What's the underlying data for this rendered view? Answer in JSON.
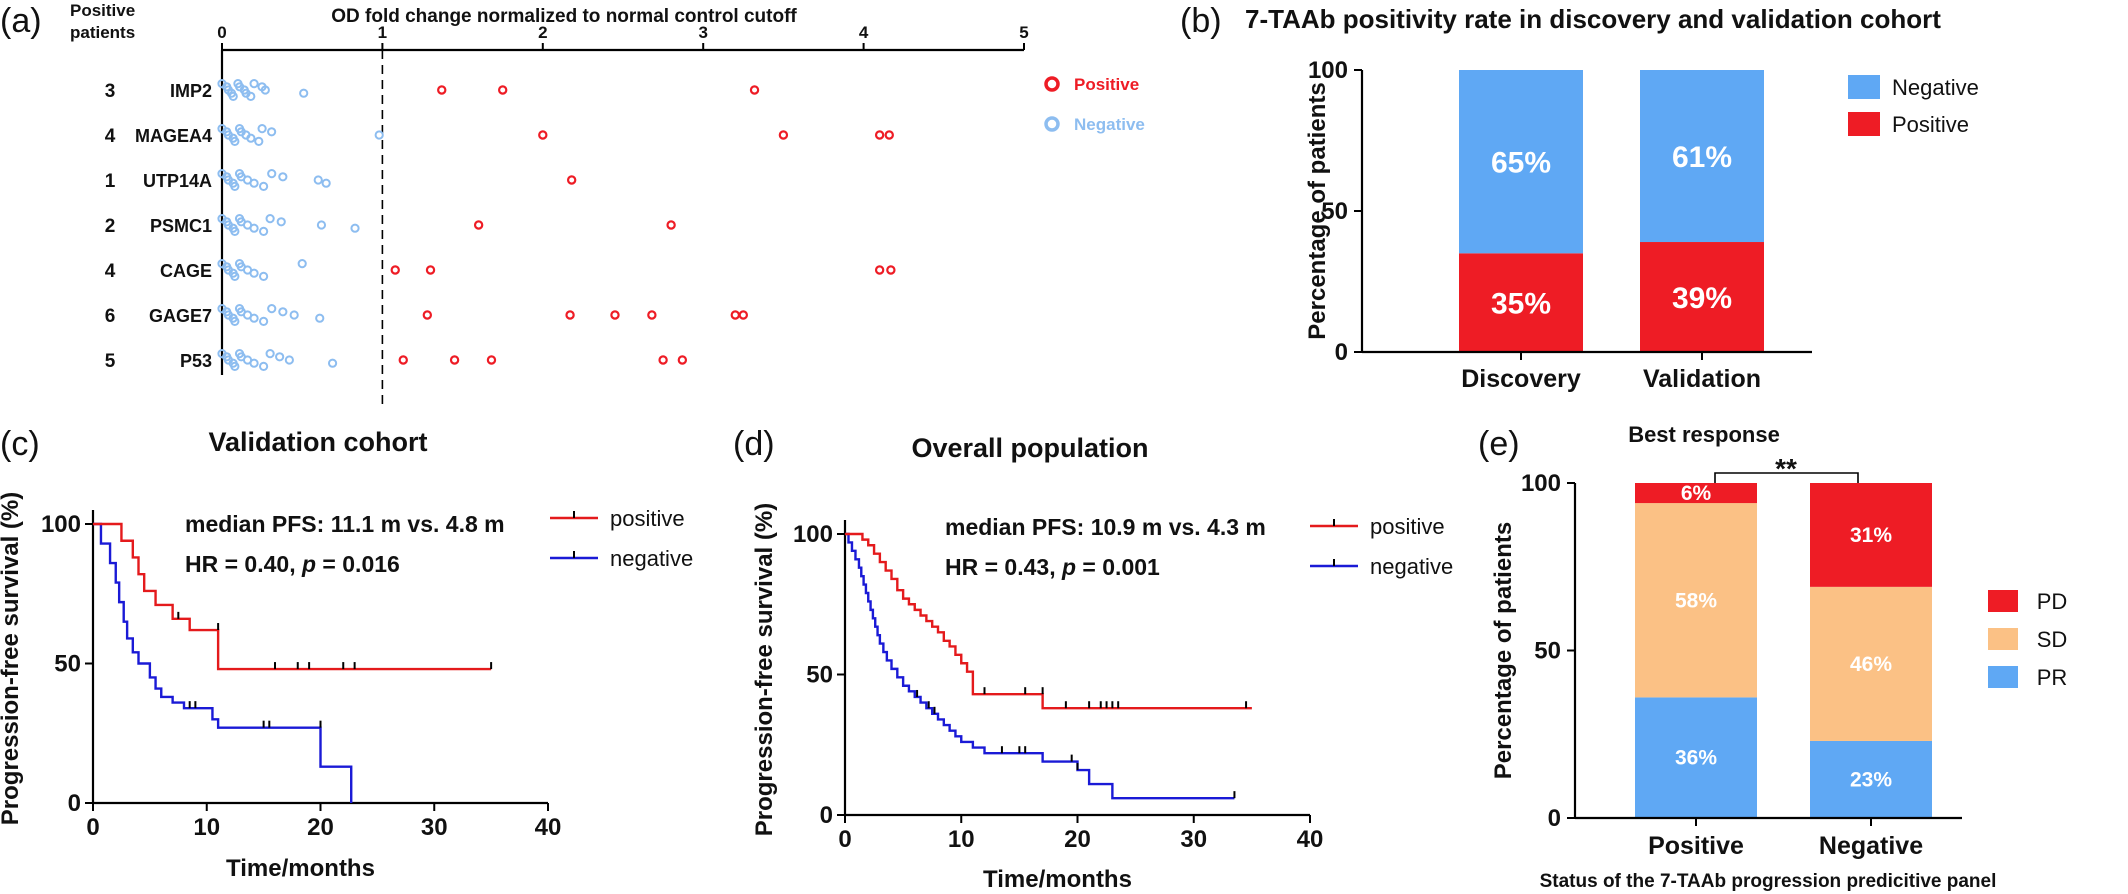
{
  "panels": {
    "a": {
      "label": "(a)"
    },
    "b": {
      "label": "(b)"
    },
    "c": {
      "label": "(c)"
    },
    "d": {
      "label": "(d)"
    },
    "e": {
      "label": "(e)"
    }
  },
  "colors": {
    "positive_red": "#ee1c25",
    "negative_blue": "#5fa8f4",
    "dot_negative": "#8dbdf0",
    "km_red": "#e41a1c",
    "km_blue": "#1a1ad6",
    "sd_orange": "#fbc185"
  },
  "chart_data": [
    {
      "id": "a",
      "type": "scatter",
      "title": "OD fold change normalized to normal control cutoff",
      "row_header": "Positive\npatients",
      "xlim": [
        0,
        5
      ],
      "xticks": [
        0,
        1,
        2,
        3,
        4,
        5
      ],
      "cutoff": 1,
      "legend": [
        {
          "name": "Positive",
          "color": "#ee1c25"
        },
        {
          "name": "Negative",
          "color": "#8dbdf0"
        }
      ],
      "rows": [
        {
          "antigen": "IMP2",
          "positive_patients": "3",
          "positive": [
            1.37,
            1.75,
            3.32
          ],
          "negative": [
            0.0,
            0.02,
            0.04,
            0.05,
            0.07,
            0.09,
            0.11,
            0.13,
            0.15,
            0.17,
            0.2,
            0.24,
            0.27,
            0.5
          ]
        },
        {
          "antigen": "MAGEA4",
          "positive_patients": "4",
          "positive": [
            2.0,
            3.5,
            4.1,
            4.16
          ],
          "negative": [
            0.0,
            0.02,
            0.04,
            0.06,
            0.08,
            0.1,
            0.12,
            0.14,
            0.18,
            0.22,
            0.25,
            0.3,
            0.98
          ]
        },
        {
          "antigen": "UTP14A",
          "positive_patients": "1",
          "positive": [
            2.18
          ],
          "negative": [
            0.0,
            0.02,
            0.04,
            0.06,
            0.08,
            0.1,
            0.12,
            0.15,
            0.2,
            0.25,
            0.31,
            0.37,
            0.6,
            0.64
          ]
        },
        {
          "antigen": "PSMC1",
          "positive_patients": "2",
          "positive": [
            1.6,
            2.8
          ],
          "negative": [
            0.0,
            0.02,
            0.04,
            0.06,
            0.08,
            0.1,
            0.12,
            0.15,
            0.2,
            0.25,
            0.3,
            0.36,
            0.62,
            0.82
          ]
        },
        {
          "antigen": "CAGE",
          "positive_patients": "4",
          "positive": [
            1.08,
            1.3,
            4.1,
            4.17
          ],
          "negative": [
            0.0,
            0.02,
            0.04,
            0.06,
            0.08,
            0.1,
            0.12,
            0.15,
            0.2,
            0.25,
            0.5
          ]
        },
        {
          "antigen": "GAGE7",
          "positive_patients": "6",
          "positive": [
            1.28,
            2.17,
            2.45,
            2.68,
            3.2,
            3.25
          ],
          "negative": [
            0.0,
            0.02,
            0.04,
            0.06,
            0.08,
            0.1,
            0.12,
            0.15,
            0.2,
            0.25,
            0.31,
            0.37,
            0.45,
            0.6
          ]
        },
        {
          "antigen": "P53",
          "positive_patients": "5",
          "positive": [
            1.13,
            1.45,
            1.68,
            2.75,
            2.87
          ],
          "negative": [
            0.0,
            0.02,
            0.04,
            0.06,
            0.08,
            0.1,
            0.12,
            0.15,
            0.2,
            0.25,
            0.3,
            0.35,
            0.42,
            0.68
          ]
        }
      ]
    },
    {
      "id": "b",
      "type": "bar",
      "stacked": true,
      "title": "7-TAAb positivity rate in discovery and validation cohort",
      "ylabel": "Percentage of patients",
      "ylim": [
        0,
        100
      ],
      "yticks": [
        0,
        50,
        100
      ],
      "categories": [
        "Discovery",
        "Validation"
      ],
      "legend_position": "right",
      "series": [
        {
          "name": "Positive",
          "values": [
            35,
            39
          ],
          "labels": [
            "35%",
            "39%"
          ],
          "color": "#ee1c25"
        },
        {
          "name": "Negative",
          "values": [
            65,
            61
          ],
          "labels": [
            "65%",
            "61%"
          ],
          "color": "#5fa8f4"
        }
      ]
    },
    {
      "id": "c",
      "type": "line",
      "subtype": "kaplan-meier",
      "title": "Validation cohort",
      "xlabel": "Time/months",
      "ylabel": "Progression-free survival (%)",
      "xlim": [
        0,
        40
      ],
      "ylim": [
        0,
        100
      ],
      "xticks": [
        0,
        10,
        20,
        30,
        40
      ],
      "yticks": [
        0,
        50,
        100
      ],
      "annotation_line1": "median PFS: 11.1 m vs. 4.8 m",
      "annotation_line2_prefix": "HR = 0.40, ",
      "annotation_line2_p": "p",
      "annotation_line2_suffix": " = 0.016",
      "series": [
        {
          "name": "positive",
          "color": "#e41a1c",
          "steps": [
            [
              0,
              100
            ],
            [
              2.5,
              94
            ],
            [
              3.5,
              88
            ],
            [
              4,
              82
            ],
            [
              4.5,
              76
            ],
            [
              5.5,
              71
            ],
            [
              7,
              66
            ],
            [
              8.5,
              62
            ],
            [
              11,
              48
            ],
            [
              35,
              48
            ]
          ],
          "censor": [
            [
              7.5,
              66
            ],
            [
              11,
              62
            ],
            [
              16,
              48
            ],
            [
              18,
              48
            ],
            [
              19,
              48
            ],
            [
              22,
              48
            ],
            [
              23,
              48
            ],
            [
              35,
              48
            ]
          ]
        },
        {
          "name": "negative",
          "color": "#1a1ad6",
          "steps": [
            [
              0,
              100
            ],
            [
              0.7,
              93
            ],
            [
              1.5,
              86
            ],
            [
              2,
              79
            ],
            [
              2.3,
              72
            ],
            [
              2.7,
              65
            ],
            [
              3,
              59
            ],
            [
              3.5,
              54
            ],
            [
              4,
              50
            ],
            [
              5,
              45
            ],
            [
              5.5,
              41
            ],
            [
              6,
              38
            ],
            [
              7,
              36
            ],
            [
              8,
              34
            ],
            [
              10.5,
              30
            ],
            [
              11,
              27
            ],
            [
              20,
              13
            ],
            [
              22.7,
              0
            ]
          ],
          "censor": [
            [
              8.5,
              34
            ],
            [
              9,
              34
            ],
            [
              15,
              27
            ],
            [
              15.5,
              27
            ],
            [
              20,
              27
            ]
          ]
        }
      ]
    },
    {
      "id": "d",
      "type": "line",
      "subtype": "kaplan-meier",
      "title": "Overall population",
      "xlabel": "Time/months",
      "ylabel": "Progression-free survival (%)",
      "xlim": [
        0,
        40
      ],
      "ylim": [
        0,
        100
      ],
      "xticks": [
        0,
        10,
        20,
        30,
        40
      ],
      "yticks": [
        0,
        50,
        100
      ],
      "annotation_line1": "median PFS: 10.9 m vs. 4.3 m",
      "annotation_line2_prefix": "HR = 0.43, ",
      "annotation_line2_p": "p",
      "annotation_line2_suffix": " = 0.001",
      "series": [
        {
          "name": "positive",
          "color": "#e41a1c",
          "steps": [
            [
              0,
              100
            ],
            [
              1.5,
              98
            ],
            [
              2,
              96
            ],
            [
              2.5,
              93
            ],
            [
              3,
              90
            ],
            [
              3.5,
              87
            ],
            [
              4,
              84
            ],
            [
              4.5,
              80
            ],
            [
              5,
              77
            ],
            [
              5.5,
              75
            ],
            [
              6,
              73
            ],
            [
              6.5,
              71
            ],
            [
              7,
              69
            ],
            [
              7.5,
              67
            ],
            [
              8,
              65
            ],
            [
              8.5,
              62
            ],
            [
              9,
              60
            ],
            [
              9.5,
              57
            ],
            [
              10,
              54
            ],
            [
              10.5,
              51
            ],
            [
              11,
              43
            ],
            [
              17,
              38
            ],
            [
              35,
              38
            ]
          ],
          "censor": [
            [
              12,
              43
            ],
            [
              15.5,
              43
            ],
            [
              17,
              43
            ],
            [
              19,
              38
            ],
            [
              21,
              38
            ],
            [
              22,
              38
            ],
            [
              22.5,
              38
            ],
            [
              23,
              38
            ],
            [
              23.5,
              38
            ],
            [
              34.5,
              38
            ]
          ]
        },
        {
          "name": "negative",
          "color": "#1a1ad6",
          "steps": [
            [
              0,
              100
            ],
            [
              0.3,
              97
            ],
            [
              0.6,
              94
            ],
            [
              0.9,
              91
            ],
            [
              1.2,
              88
            ],
            [
              1.4,
              85
            ],
            [
              1.6,
              82
            ],
            [
              1.8,
              79
            ],
            [
              2,
              76
            ],
            [
              2.2,
              73
            ],
            [
              2.4,
              70
            ],
            [
              2.6,
              67
            ],
            [
              2.8,
              64
            ],
            [
              3,
              61
            ],
            [
              3.3,
              58
            ],
            [
              3.6,
              55
            ],
            [
              4,
              52
            ],
            [
              4.5,
              49
            ],
            [
              5,
              46
            ],
            [
              5.5,
              44
            ],
            [
              6,
              42
            ],
            [
              6.5,
              40
            ],
            [
              7,
              38
            ],
            [
              7.5,
              36
            ],
            [
              8,
              34
            ],
            [
              8.5,
              32
            ],
            [
              9,
              30
            ],
            [
              9.5,
              28
            ],
            [
              10,
              26
            ],
            [
              11,
              24
            ],
            [
              12,
              22
            ],
            [
              17,
              19
            ],
            [
              20,
              16
            ],
            [
              21,
              11
            ],
            [
              23,
              6
            ],
            [
              33.5,
              6
            ]
          ],
          "censor": [
            [
              6.2,
              42
            ],
            [
              7.2,
              38
            ],
            [
              7.7,
              36
            ],
            [
              13.5,
              22
            ],
            [
              15,
              22
            ],
            [
              15.5,
              22
            ],
            [
              19.5,
              19
            ],
            [
              20,
              16
            ],
            [
              33.5,
              6
            ]
          ]
        }
      ]
    },
    {
      "id": "e",
      "type": "bar",
      "stacked": true,
      "title": "Best response",
      "significance": "**",
      "xlabel": "Status of the 7-TAAb progression predicitive panel",
      "ylabel": "Percentage of patients",
      "ylim": [
        0,
        100
      ],
      "yticks": [
        0,
        50,
        100
      ],
      "categories": [
        "Positive",
        "Negative"
      ],
      "legend_position": "right",
      "series": [
        {
          "name": "PR",
          "values": [
            36,
            23
          ],
          "labels": [
            "36%",
            "23%"
          ],
          "color": "#5fa8f4"
        },
        {
          "name": "SD",
          "values": [
            58,
            46
          ],
          "labels": [
            "58%",
            "46%"
          ],
          "color": "#fbc185"
        },
        {
          "name": "PD",
          "values": [
            6,
            31
          ],
          "labels": [
            "6%",
            "31%"
          ],
          "color": "#ee1c25"
        }
      ]
    }
  ]
}
